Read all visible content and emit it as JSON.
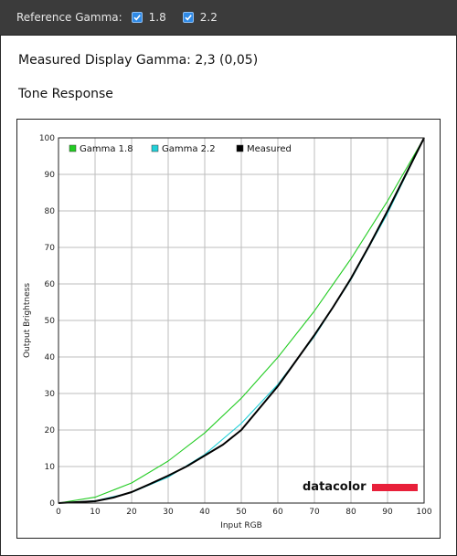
{
  "toolbar": {
    "reference_label": "Reference Gamma:",
    "options": [
      {
        "label": "1.8",
        "checked": true
      },
      {
        "label": "2.2",
        "checked": true
      }
    ]
  },
  "measured_text": "Measured Display Gamma: 2,3 (0,05)",
  "tone_heading": "Tone Response",
  "brand": "datacolor",
  "colors": {
    "gamma18": "#22cc22",
    "gamma22": "#22d0d8",
    "measured": "#000000",
    "brand_bar": "#e8203a"
  },
  "chart_data": {
    "type": "line",
    "title": "",
    "xlabel": "Input RGB",
    "ylabel": "Output Brightness",
    "xlim": [
      0,
      100
    ],
    "ylim": [
      0,
      100
    ],
    "x_ticks": [
      0,
      10,
      20,
      30,
      40,
      50,
      60,
      70,
      80,
      90,
      100
    ],
    "y_ticks": [
      0,
      10,
      20,
      30,
      40,
      50,
      60,
      70,
      80,
      90,
      100
    ],
    "grid": true,
    "legend_position": "top-left",
    "series": [
      {
        "name": "Gamma 1.8",
        "color_key": "gamma18",
        "x": [
          0,
          10,
          20,
          30,
          40,
          50,
          60,
          70,
          80,
          90,
          100
        ],
        "y": [
          0,
          1.6,
          5.5,
          11.5,
          19.2,
          28.7,
          39.9,
          52.6,
          66.9,
          82.7,
          100
        ]
      },
      {
        "name": "Gamma 2.2",
        "color_key": "gamma22",
        "x": [
          0,
          10,
          20,
          30,
          40,
          50,
          60,
          70,
          80,
          90,
          100
        ],
        "y": [
          0,
          0.6,
          2.9,
          7.1,
          13.3,
          21.8,
          32.5,
          45.6,
          61.2,
          79.3,
          100
        ]
      },
      {
        "name": "Measured",
        "color_key": "measured",
        "x": [
          0,
          10,
          15,
          20,
          25,
          30,
          35,
          40,
          45,
          50,
          55,
          60,
          65,
          70,
          75,
          80,
          85,
          90,
          95,
          100
        ],
        "y": [
          0,
          0.5,
          1.5,
          3.0,
          5.2,
          7.5,
          10.0,
          13.0,
          16.0,
          20.0,
          26.0,
          32.0,
          39.0,
          46.0,
          53.5,
          61.5,
          70.5,
          80.0,
          90.0,
          100
        ]
      }
    ]
  }
}
